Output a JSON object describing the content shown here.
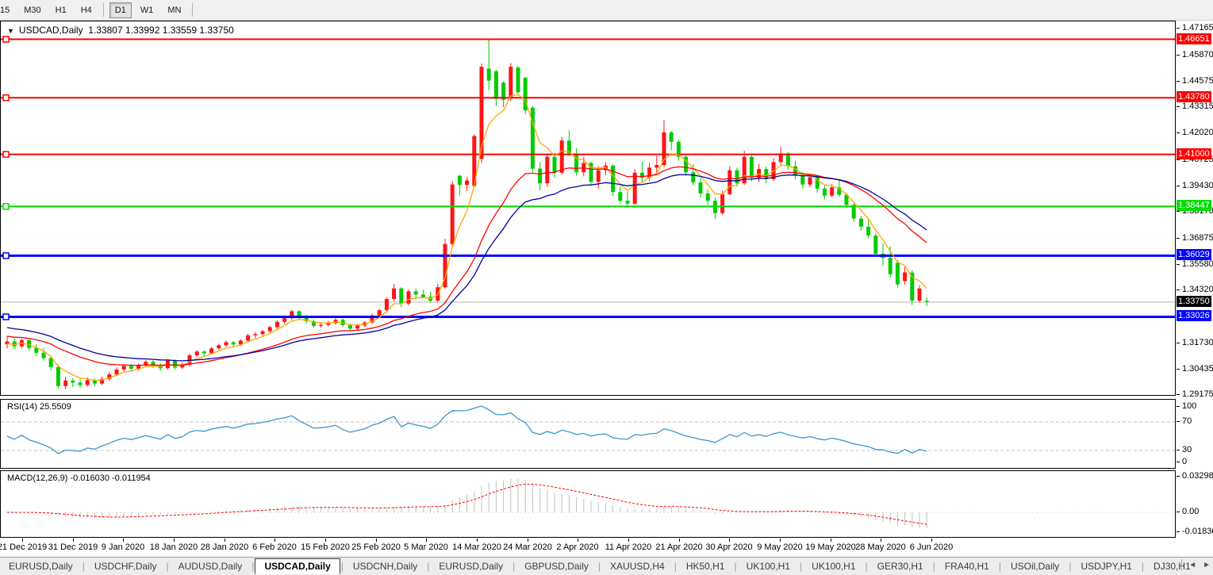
{
  "toolbar": {
    "timeframes": [
      "15",
      "M30",
      "H1",
      "H4",
      "D1",
      "W1",
      "MN"
    ],
    "active_timeframe": "D1"
  },
  "chart": {
    "title": {
      "dropdown_icon": "▼",
      "symbol": "USDCAD,Daily",
      "ohlc": "1.33807 1.33992 1.33559 1.33750"
    }
  },
  "chart_data": {
    "type": "candlestick",
    "symbol": "USDCAD",
    "period": "Daily",
    "up_color": "#ff1414",
    "down_color": "#00cc00",
    "last_candle": {
      "open": 1.33807,
      "high": 1.33992,
      "low": 1.33559,
      "close": 1.3375
    },
    "x_labels": [
      "21 Dec 2019",
      "31 Dec 2019",
      "9 Jan 2020",
      "18 Jan 2020",
      "28 Jan 2020",
      "6 Feb 2020",
      "15 Feb 2020",
      "25 Feb 2020",
      "5 Mar 2020",
      "14 Mar 2020",
      "24 Mar 2020",
      "2 Apr 2020",
      "11 Apr 2020",
      "21 Apr 2020",
      "30 Apr 2020",
      "9 May 2020",
      "19 May 2020",
      "28 May 2020",
      "6 Jun 2020"
    ],
    "y_ticks": [
      "1.47165",
      "1.45870",
      "1.44575",
      "1.43315",
      "1.42020",
      "1.40725",
      "1.39430",
      "1.38170",
      "1.36875",
      "1.35580",
      "1.34320",
      "1.31730",
      "1.30435",
      "1.29175"
    ],
    "levels": [
      {
        "label": "1.46651",
        "price": 1.46651,
        "color": "#ff0000",
        "width": 2
      },
      {
        "label": "1.43780",
        "price": 1.4378,
        "color": "#ff0000",
        "width": 2
      },
      {
        "label": "1.41000",
        "price": 1.41,
        "color": "#ff0000",
        "width": 2
      },
      {
        "label": "1.38447",
        "price": 1.38447,
        "color": "#00dd00",
        "width": 2
      },
      {
        "label": "1.36029",
        "price": 1.36029,
        "color": "#0000ff",
        "width": 3
      },
      {
        "label": "1.33026",
        "price": 1.33026,
        "color": "#0000ff",
        "width": 3
      }
    ],
    "current_price": {
      "label": "1.33750",
      "price": 1.3375,
      "line_color": "#b8b8b8",
      "badge_color": "#000000"
    },
    "moving_averages": [
      {
        "name": "ma-fast",
        "color": "#ffa800",
        "period": 5,
        "seed": 1.3165
      },
      {
        "name": "ma-medium",
        "color": "#ff0000",
        "period": 20,
        "seed": 1.321
      },
      {
        "name": "ma-slow",
        "color": "#0000a0",
        "period": 28,
        "seed": 1.3255
      }
    ],
    "candles": [
      [
        1.3168,
        1.3208,
        1.3148,
        1.3182
      ],
      [
        1.3182,
        1.3198,
        1.3145,
        1.3158
      ],
      [
        1.3158,
        1.3196,
        1.315,
        1.3188
      ],
      [
        1.3188,
        1.3193,
        1.3135,
        1.315
      ],
      [
        1.315,
        1.3168,
        1.311,
        1.3126
      ],
      [
        1.3126,
        1.315,
        1.3088,
        1.31
      ],
      [
        1.31,
        1.3112,
        1.304,
        1.3056
      ],
      [
        1.3056,
        1.3066,
        1.2952,
        1.2963
      ],
      [
        1.2963,
        1.3008,
        1.2948,
        1.299
      ],
      [
        1.299,
        1.3002,
        1.2958,
        1.298
      ],
      [
        1.298,
        1.2998,
        1.2952,
        1.2968
      ],
      [
        1.2968,
        1.3005,
        1.296,
        1.2992
      ],
      [
        1.2992,
        1.3,
        1.2962,
        1.2975
      ],
      [
        1.2975,
        1.301,
        1.2968,
        1.2998
      ],
      [
        1.2998,
        1.3032,
        1.299,
        1.302
      ],
      [
        1.302,
        1.3055,
        1.3012,
        1.3044
      ],
      [
        1.3044,
        1.3072,
        1.3036,
        1.3062
      ],
      [
        1.3062,
        1.307,
        1.3035,
        1.3048
      ],
      [
        1.3048,
        1.3075,
        1.304,
        1.3064
      ],
      [
        1.3064,
        1.3092,
        1.3056,
        1.3082
      ],
      [
        1.3082,
        1.309,
        1.3052,
        1.3066
      ],
      [
        1.3066,
        1.3075,
        1.3038,
        1.305
      ],
      [
        1.305,
        1.3095,
        1.3044,
        1.3088
      ],
      [
        1.3088,
        1.3094,
        1.3042,
        1.3054
      ],
      [
        1.3054,
        1.3078,
        1.3046,
        1.3068
      ],
      [
        1.3068,
        1.3122,
        1.306,
        1.3114
      ],
      [
        1.3114,
        1.314,
        1.3106,
        1.3132
      ],
      [
        1.3132,
        1.3138,
        1.3108,
        1.3124
      ],
      [
        1.3124,
        1.3155,
        1.3118,
        1.3148
      ],
      [
        1.3148,
        1.317,
        1.314,
        1.3163
      ],
      [
        1.3163,
        1.3186,
        1.3155,
        1.3178
      ],
      [
        1.3178,
        1.3184,
        1.3152,
        1.3167
      ],
      [
        1.3167,
        1.3192,
        1.316,
        1.3186
      ],
      [
        1.3186,
        1.322,
        1.3178,
        1.3212
      ],
      [
        1.3212,
        1.3228,
        1.3198,
        1.3218
      ],
      [
        1.3218,
        1.324,
        1.321,
        1.3232
      ],
      [
        1.3232,
        1.326,
        1.3224,
        1.3252
      ],
      [
        1.3252,
        1.3286,
        1.3244,
        1.3278
      ],
      [
        1.3278,
        1.3304,
        1.3268,
        1.3296
      ],
      [
        1.3296,
        1.3338,
        1.3288,
        1.333
      ],
      [
        1.333,
        1.3336,
        1.3288,
        1.3304
      ],
      [
        1.3304,
        1.3312,
        1.327,
        1.3282
      ],
      [
        1.3282,
        1.329,
        1.3248,
        1.3258
      ],
      [
        1.3258,
        1.3275,
        1.325,
        1.3263
      ],
      [
        1.3263,
        1.3284,
        1.3255,
        1.3272
      ],
      [
        1.3272,
        1.3296,
        1.3264,
        1.3288
      ],
      [
        1.3288,
        1.3294,
        1.3252,
        1.3262
      ],
      [
        1.3262,
        1.327,
        1.3232,
        1.3245
      ],
      [
        1.3245,
        1.3268,
        1.3238,
        1.326
      ],
      [
        1.326,
        1.3282,
        1.3252,
        1.3275
      ],
      [
        1.3275,
        1.3318,
        1.3268,
        1.331
      ],
      [
        1.331,
        1.3342,
        1.3298,
        1.3335
      ],
      [
        1.3335,
        1.3398,
        1.3326,
        1.339
      ],
      [
        1.339,
        1.3464,
        1.338,
        1.3442
      ],
      [
        1.3442,
        1.3448,
        1.335,
        1.3368
      ],
      [
        1.3368,
        1.3438,
        1.3358,
        1.3428
      ],
      [
        1.3428,
        1.3442,
        1.3388,
        1.3412
      ],
      [
        1.3412,
        1.3436,
        1.3395,
        1.34
      ],
      [
        1.34,
        1.3425,
        1.3372,
        1.3382
      ],
      [
        1.3382,
        1.3465,
        1.3375,
        1.3448
      ],
      [
        1.3448,
        1.3685,
        1.344,
        1.366
      ],
      [
        1.366,
        1.3968,
        1.3648,
        1.3952
      ],
      [
        1.3995,
        1.4,
        1.39,
        1.395
      ],
      [
        1.395,
        1.399,
        1.392,
        1.3972
      ],
      [
        1.3945,
        1.4198,
        1.3938,
        1.419
      ],
      [
        1.4078,
        1.4546,
        1.4058,
        1.453
      ],
      [
        1.4521,
        1.46651,
        1.4416,
        1.4462
      ],
      [
        1.4508,
        1.4515,
        1.4338,
        1.4372
      ],
      [
        1.4452,
        1.4458,
        1.4332,
        1.4368
      ],
      [
        1.438,
        1.4548,
        1.4362,
        1.453
      ],
      [
        1.4526,
        1.4534,
        1.4388,
        1.4405
      ],
      [
        1.4476,
        1.4482,
        1.4298,
        1.4316
      ],
      [
        1.433,
        1.4338,
        1.4012,
        1.403
      ],
      [
        1.403,
        1.4062,
        1.3922,
        1.3958
      ],
      [
        1.3958,
        1.4102,
        1.394,
        1.4088
      ],
      [
        1.4088,
        1.4095,
        1.3985,
        1.401
      ],
      [
        1.401,
        1.4185,
        1.4002,
        1.4168
      ],
      [
        1.4168,
        1.4218,
        1.4092,
        1.4105
      ],
      [
        1.4105,
        1.413,
        1.3995,
        1.4012
      ],
      [
        1.4012,
        1.4088,
        1.3992,
        1.4058
      ],
      [
        1.4058,
        1.4065,
        1.3948,
        1.3965
      ],
      [
        1.3965,
        1.4042,
        1.3932,
        1.4022
      ],
      [
        1.4022,
        1.4062,
        1.3998,
        1.4045
      ],
      [
        1.4045,
        1.4052,
        1.3895,
        1.3915
      ],
      [
        1.3915,
        1.3945,
        1.3858,
        1.3872
      ],
      [
        1.3872,
        1.3918,
        1.384,
        1.3858
      ],
      [
        1.3858,
        1.4028,
        1.3852,
        1.401
      ],
      [
        1.401,
        1.4065,
        1.3962,
        1.3985
      ],
      [
        1.3985,
        1.4058,
        1.397,
        1.4035
      ],
      [
        1.4035,
        1.4092,
        1.4008,
        1.4048
      ],
      [
        1.4048,
        1.4268,
        1.4038,
        1.4208
      ],
      [
        1.4208,
        1.4215,
        1.4122,
        1.4162
      ],
      [
        1.4162,
        1.4172,
        1.4068,
        1.4088
      ],
      [
        1.4088,
        1.4098,
        1.3995,
        1.4012
      ],
      [
        1.4012,
        1.4052,
        1.3948,
        1.3962
      ],
      [
        1.3962,
        1.3985,
        1.3888,
        1.3908
      ],
      [
        1.3908,
        1.3928,
        1.3852,
        1.3872
      ],
      [
        1.3872,
        1.3888,
        1.3782,
        1.3812
      ],
      [
        1.3812,
        1.3922,
        1.3802,
        1.3905
      ],
      [
        1.3905,
        1.4042,
        1.3898,
        1.4022
      ],
      [
        1.4022,
        1.4035,
        1.3942,
        1.3958
      ],
      [
        1.3958,
        1.4118,
        1.395,
        1.4088
      ],
      [
        1.4088,
        1.4098,
        1.3968,
        1.3985
      ],
      [
        1.3985,
        1.4052,
        1.3962,
        1.4028
      ],
      [
        1.4028,
        1.404,
        1.3958,
        1.3978
      ],
      [
        1.3978,
        1.4082,
        1.397,
        1.4062
      ],
      [
        1.4062,
        1.4138,
        1.4048,
        1.4105
      ],
      [
        1.4105,
        1.4112,
        1.4025,
        1.4042
      ],
      [
        1.4042,
        1.4068,
        1.3978,
        1.3995
      ],
      [
        1.3995,
        1.4012,
        1.3932,
        1.3952
      ],
      [
        1.3952,
        1.4005,
        1.394,
        1.3988
      ],
      [
        1.3988,
        1.3995,
        1.3912,
        1.3932
      ],
      [
        1.3932,
        1.3945,
        1.3878,
        1.3898
      ],
      [
        1.3898,
        1.3955,
        1.3888,
        1.3938
      ],
      [
        1.3938,
        1.398,
        1.3892,
        1.3902
      ],
      [
        1.3902,
        1.3912,
        1.3838,
        1.3852
      ],
      [
        1.3852,
        1.3858,
        1.3768,
        1.3785
      ],
      [
        1.3785,
        1.3798,
        1.3725,
        1.3745
      ],
      [
        1.3745,
        1.3788,
        1.3688,
        1.3702
      ],
      [
        1.3702,
        1.3712,
        1.3598,
        1.3612
      ],
      [
        1.3612,
        1.3665,
        1.3552,
        1.3592
      ],
      [
        1.3592,
        1.3648,
        1.3496,
        1.3512
      ],
      [
        1.3568,
        1.3582,
        1.3445,
        1.3462
      ],
      [
        1.3478,
        1.3548,
        1.346,
        1.3521
      ],
      [
        1.352,
        1.3532,
        1.336,
        1.3382
      ],
      [
        1.3382,
        1.3458,
        1.3372,
        1.3442
      ],
      [
        1.33807,
        1.33992,
        1.33559,
        1.3375
      ]
    ],
    "rsi": {
      "label": "RSI(14) 25.5509",
      "period": 14,
      "value": 25.5509,
      "color": "#3d95d0",
      "levels": [
        70,
        30
      ],
      "y_ticks": [
        "100",
        "70",
        "30",
        "0"
      ]
    },
    "macd": {
      "label": "MACD(12,26,9) -0.016030 -0.011954",
      "fast": 12,
      "slow": 26,
      "signal_period": 9,
      "value": -0.01603,
      "signal_value": -0.011954,
      "bar_color": "#c0c0c0",
      "signal_color": "#ff0000",
      "y_ticks": [
        "0.032982",
        "0.00",
        "-0.01836"
      ]
    }
  },
  "tabs": {
    "items": [
      "EURUSD,Daily",
      "USDCHF,Daily",
      "AUDUSD,Daily",
      "USDCAD,Daily",
      "USDCNH,Daily",
      "EURUSD,Daily",
      "GBPUSD,Daily",
      "XAUUSD,H4",
      "HK50,H1",
      "UK100,H1",
      "UK100,H1",
      "GER30,H1",
      "FRA40,H1",
      "USOil,Daily",
      "USDJPY,H1",
      "DJ30,H1"
    ],
    "active_index": 3,
    "nav_left": "◄",
    "nav_right": "►"
  }
}
